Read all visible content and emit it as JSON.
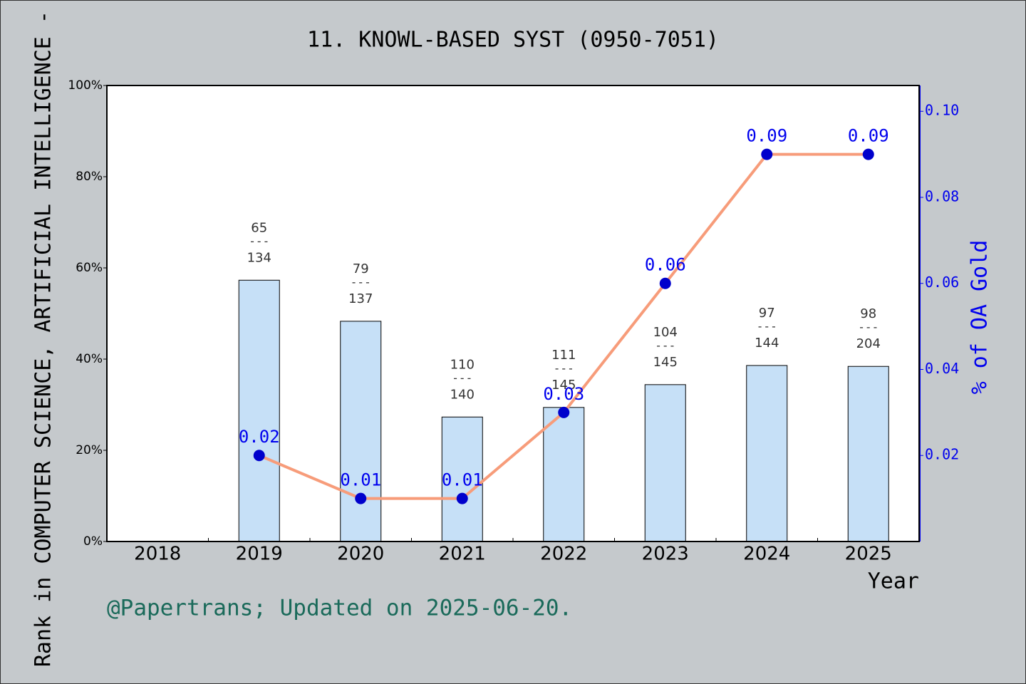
{
  "chart_data": {
    "type": "bar",
    "title": "11. KNOWL-BASED SYST (0950-7051)",
    "x_label": "Year",
    "y_label": "Rank in COMPUTER SCIENCE, ARTIFICIAL INTELLIGENCE -",
    "y2_label": "% of OA Gold",
    "footer": "@Papertrans; Updated on 2025-06-20.",
    "categories": [
      "2018",
      "2019",
      "2020",
      "2021",
      "2022",
      "2023",
      "2024",
      "2025"
    ],
    "series": [
      {
        "type": "bar",
        "color": "#c6e0f7",
        "values": [
          null,
          57.3,
          48.3,
          27.3,
          29.4,
          34.4,
          38.6,
          38.4
        ],
        "annotations": [
          null,
          {
            "rank": "65",
            "sep": "---",
            "total": "134"
          },
          {
            "rank": "79",
            "sep": "---",
            "total": "137"
          },
          {
            "rank": "110",
            "sep": "---",
            "total": "140"
          },
          {
            "rank": "111",
            "sep": "---",
            "total": "145"
          },
          {
            "rank": "104",
            "sep": "---",
            "total": "145"
          },
          {
            "rank": "97",
            "sep": "---",
            "total": "144"
          },
          {
            "rank": "98",
            "sep": "---",
            "total": "204"
          }
        ]
      },
      {
        "type": "line",
        "axis": "y2",
        "color": "#f79c7a",
        "marker_color": "#0000cc",
        "values": [
          null,
          0.02,
          0.01,
          0.01,
          0.03,
          0.06,
          0.09,
          0.09
        ]
      }
    ],
    "ylim": [
      0,
      100
    ],
    "yticks": [
      {
        "value": 0,
        "label": "0%"
      },
      {
        "value": 20,
        "label": "20%"
      },
      {
        "value": 40,
        "label": "40%"
      },
      {
        "value": 60,
        "label": "60%"
      },
      {
        "value": 80,
        "label": "80%"
      },
      {
        "value": 100,
        "label": "100%"
      }
    ],
    "y2lim": [
      0,
      0.106
    ],
    "y2ticks": [
      0.02,
      0.04,
      0.06,
      0.08,
      {
        "value": 0.1,
        "label": "0.10"
      }
    ]
  }
}
